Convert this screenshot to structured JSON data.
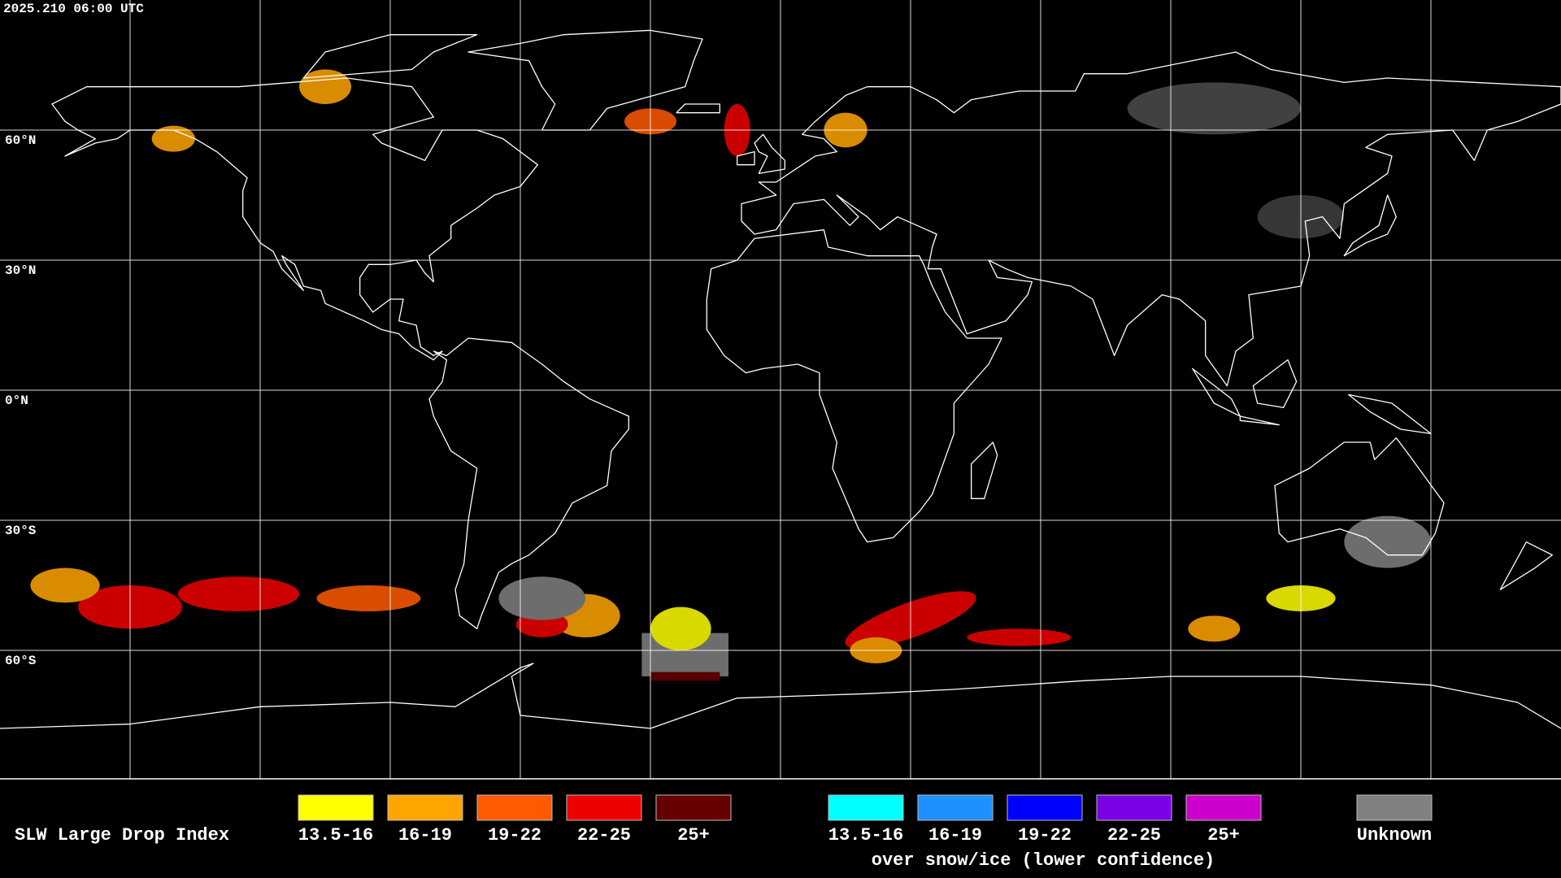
{
  "header": {
    "timestamp": "2025.210 06:00 UTC"
  },
  "map": {
    "lat_labels": [
      "60°N",
      "30°N",
      "0°N",
      "30°S",
      "60°S"
    ]
  },
  "legend": {
    "title": "SLW Large Drop Index",
    "items": [
      {
        "label": "13.5-16",
        "color": "#ffff00"
      },
      {
        "label": "16-19",
        "color": "#ffa500"
      },
      {
        "label": "19-22",
        "color": "#ff5a00"
      },
      {
        "label": "22-25",
        "color": "#ee0000"
      },
      {
        "label": "25+",
        "color": "#660000"
      }
    ],
    "snow_items": [
      {
        "label": "13.5-16",
        "color": "#00ffff"
      },
      {
        "label": "16-19",
        "color": "#1e90ff"
      },
      {
        "label": "19-22",
        "color": "#0000ff"
      },
      {
        "label": "22-25",
        "color": "#7a00e6"
      },
      {
        "label": "25+",
        "color": "#cc00cc"
      }
    ],
    "snow_caption": "over snow/ice (lower confidence)",
    "unknown": {
      "label": "Unknown",
      "color": "#808080"
    }
  }
}
